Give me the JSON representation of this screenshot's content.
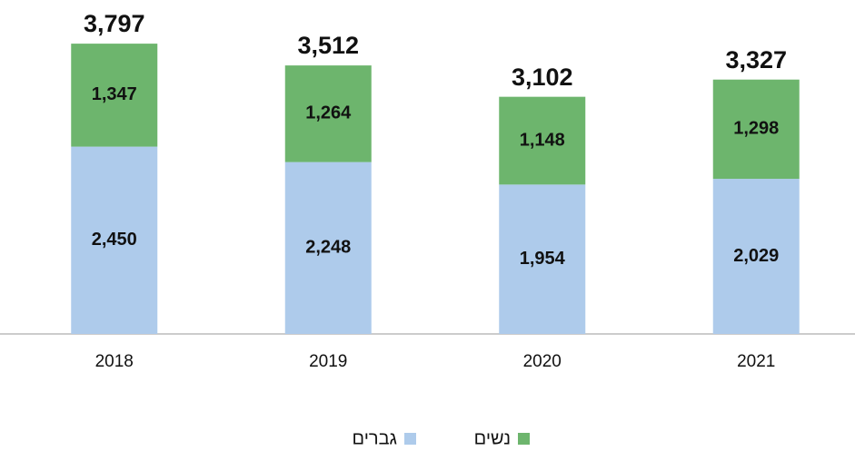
{
  "chart_data": {
    "type": "stacked-bar",
    "categories": [
      "2018",
      "2019",
      "2020",
      "2021"
    ],
    "series": [
      {
        "name": "גברים",
        "color": "#aecbeb",
        "values": [
          2450,
          2248,
          1954,
          2029
        ],
        "value_labels": [
          "2,450",
          "2,248",
          "1,954",
          "2,029"
        ]
      },
      {
        "name": "נשים",
        "color": "#6db56d",
        "values": [
          1347,
          1264,
          1148,
          1298
        ],
        "value_labels": [
          "1,347",
          "1,264",
          "1,148",
          "1,298"
        ]
      }
    ],
    "totals": [
      3797,
      3512,
      3102,
      3327
    ],
    "total_labels": [
      "3,797",
      "3,512",
      "3,102",
      "3,327"
    ],
    "ylim": [
      0,
      4000
    ]
  }
}
